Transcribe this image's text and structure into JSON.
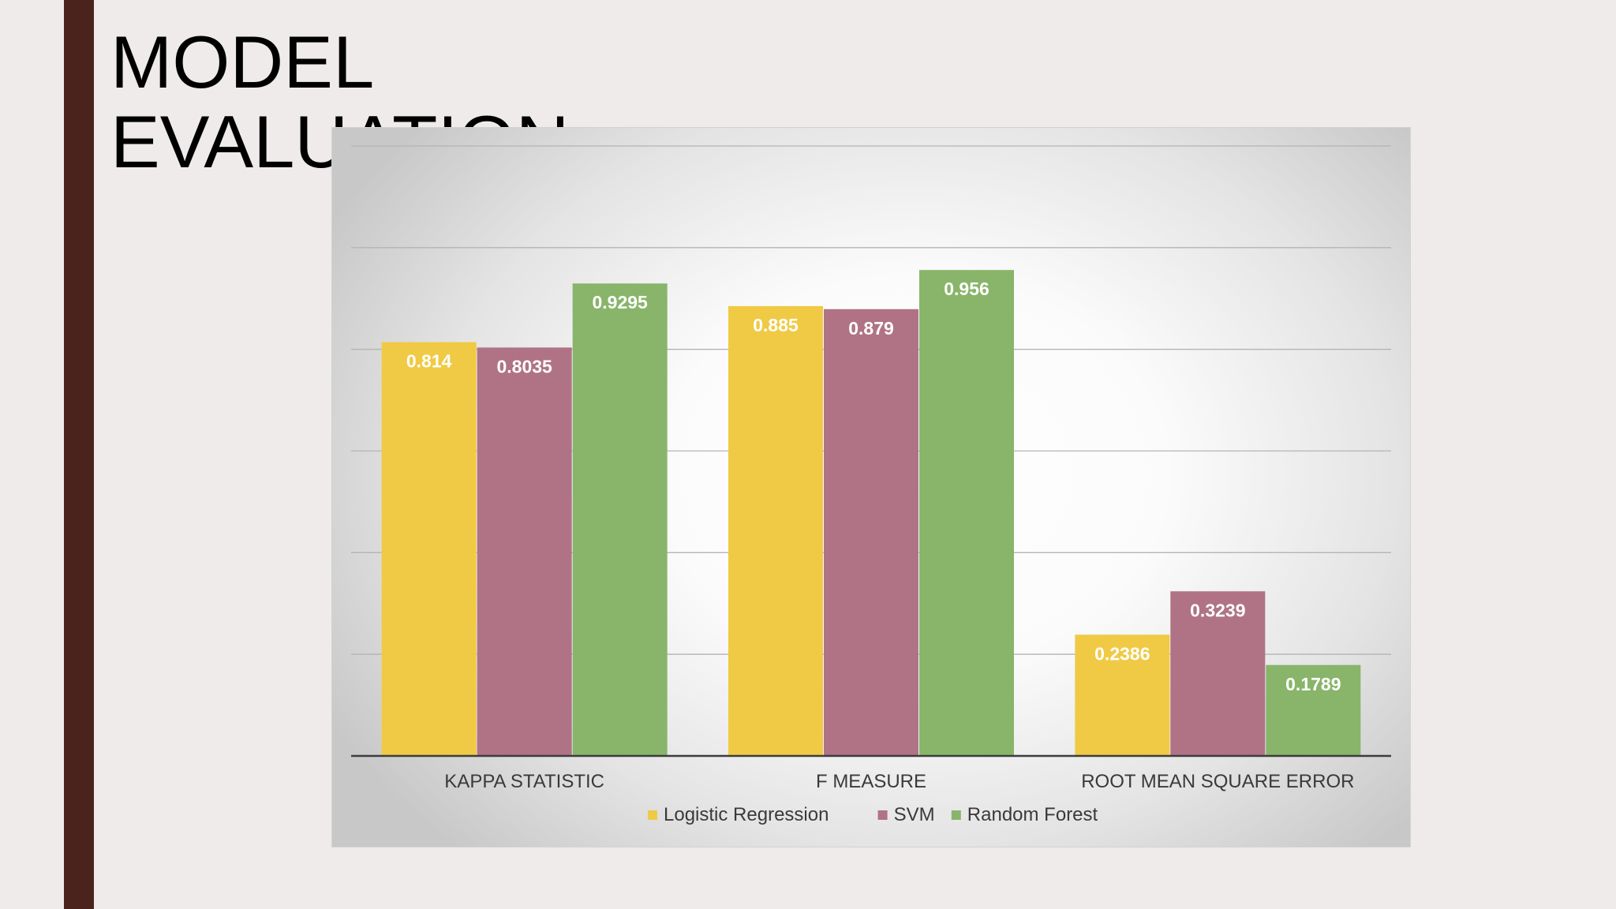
{
  "slide": {
    "title": "MODEL\nEVALUATION"
  },
  "colors": {
    "Logistic Regression": "#f0ca45",
    "SVM": "#b07385",
    "Random Forest": "#88b56a",
    "sidebar": "#4b231d"
  },
  "chart_data": {
    "type": "bar",
    "categories": [
      "KAPPA STATISTIC",
      "F MEASURE",
      "ROOT MEAN SQUARE ERROR"
    ],
    "series": [
      {
        "name": "Logistic Regression",
        "values": [
          0.814,
          0.885,
          0.2386
        ]
      },
      {
        "name": "SVM",
        "values": [
          0.8035,
          0.879,
          0.3239
        ]
      },
      {
        "name": "Random Forest",
        "values": [
          0.9295,
          0.956,
          0.1789
        ]
      }
    ],
    "data_labels": [
      [
        "0.814",
        "0.885",
        "0.2386"
      ],
      [
        "0.8035",
        "0.879",
        "0.3239"
      ],
      [
        "0.9295",
        "0.956",
        "0.1789"
      ]
    ],
    "ylim": [
      0,
      1.2
    ],
    "grid": true,
    "legend": "bottom",
    "title": "",
    "xlabel": "",
    "ylabel": ""
  }
}
